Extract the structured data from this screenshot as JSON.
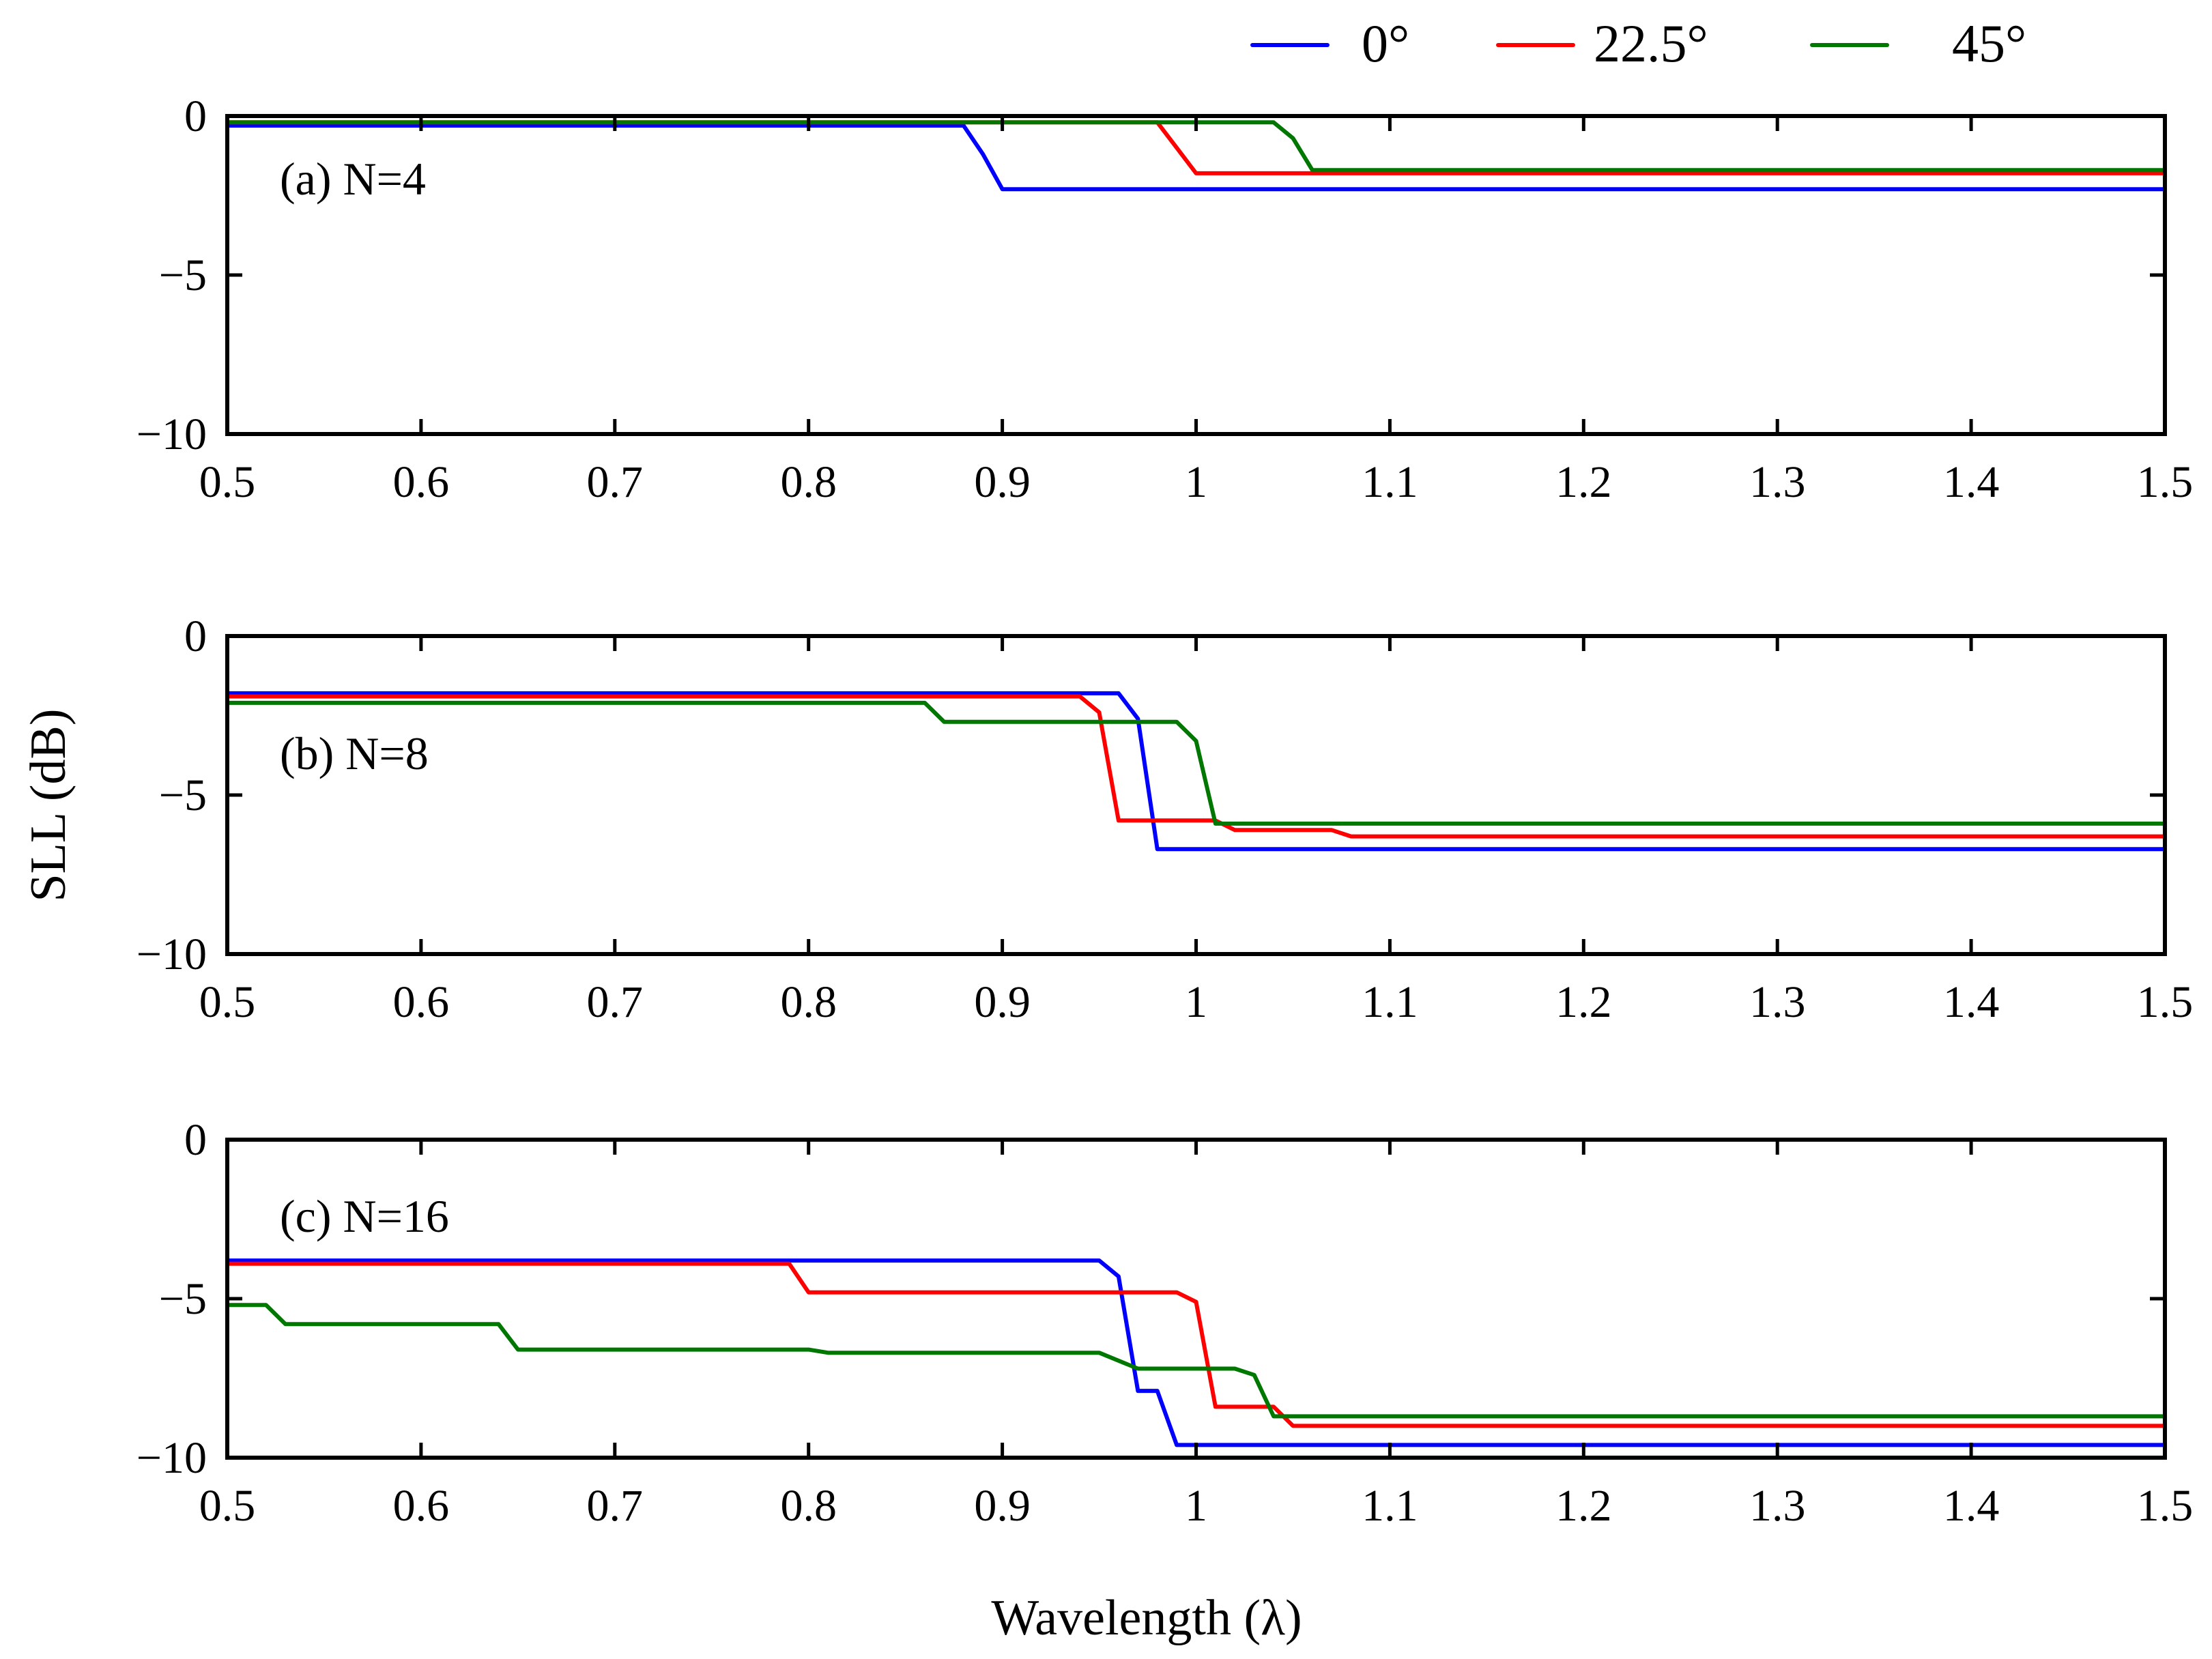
{
  "legend": [
    {
      "label": "0°",
      "color": "#0000ff"
    },
    {
      "label": "22.5°",
      "color": "#ff0000"
    },
    {
      "label": "45°",
      "color": "#007700"
    }
  ],
  "axes": {
    "ylabel": "SLL (dB)",
    "xlabel": "Wavelength (λ)"
  },
  "chart_data": [
    {
      "type": "line",
      "title": "(a) N=4",
      "xlim": [
        0.5,
        1.5
      ],
      "ylim": [
        -10,
        0
      ],
      "xticks": [
        0.5,
        0.6,
        0.7,
        0.8,
        0.9,
        1.0,
        1.1,
        1.2,
        1.3,
        1.4,
        1.5
      ],
      "xtick_labels": [
        "0.5",
        "0.6",
        "0.7",
        "0.8",
        "0.9",
        "1",
        "1.1",
        "1.2",
        "1.3",
        "1.4",
        "1.5"
      ],
      "yticks": [
        0,
        -5,
        -10
      ],
      "ytick_labels": [
        "0",
        "−5",
        "−10"
      ],
      "series": [
        {
          "name": "0°",
          "color": "#0000ff",
          "x": [
            0.5,
            0.88,
            0.89,
            0.9,
            1.5
          ],
          "y": [
            -0.3,
            -0.3,
            -1.2,
            -2.3,
            -2.3
          ]
        },
        {
          "name": "22.5°",
          "color": "#ff0000",
          "x": [
            0.5,
            0.98,
            0.99,
            1.0,
            1.5
          ],
          "y": [
            -0.2,
            -0.2,
            -1.0,
            -1.8,
            -1.8
          ]
        },
        {
          "name": "45°",
          "color": "#007700",
          "x": [
            0.5,
            1.04,
            1.05,
            1.06,
            1.5
          ],
          "y": [
            -0.2,
            -0.2,
            -0.7,
            -1.7,
            -1.7
          ]
        }
      ]
    },
    {
      "type": "line",
      "title": "(b) N=8",
      "xlim": [
        0.5,
        1.5
      ],
      "ylim": [
        -10,
        0
      ],
      "xticks": [
        0.5,
        0.6,
        0.7,
        0.8,
        0.9,
        1.0,
        1.1,
        1.2,
        1.3,
        1.4,
        1.5
      ],
      "xtick_labels": [
        "0.5",
        "0.6",
        "0.7",
        "0.8",
        "0.9",
        "1",
        "1.1",
        "1.2",
        "1.3",
        "1.4",
        "1.5"
      ],
      "yticks": [
        0,
        -5,
        -10
      ],
      "ytick_labels": [
        "0",
        "−5",
        "−10"
      ],
      "series": [
        {
          "name": "0°",
          "color": "#0000ff",
          "x": [
            0.5,
            0.96,
            0.97,
            0.98,
            1.5
          ],
          "y": [
            -1.8,
            -1.8,
            -2.6,
            -6.7,
            -6.7
          ]
        },
        {
          "name": "22.5°",
          "color": "#ff0000",
          "x": [
            0.5,
            0.94,
            0.95,
            0.96,
            1.01,
            1.02,
            1.07,
            1.08,
            1.5
          ],
          "y": [
            -1.9,
            -1.9,
            -2.4,
            -5.8,
            -5.8,
            -6.1,
            -6.1,
            -6.3,
            -6.3
          ]
        },
        {
          "name": "45°",
          "color": "#007700",
          "x": [
            0.5,
            0.86,
            0.87,
            0.99,
            1.0,
            1.01,
            1.5
          ],
          "y": [
            -2.1,
            -2.1,
            -2.7,
            -2.7,
            -3.3,
            -5.9,
            -5.9
          ]
        }
      ]
    },
    {
      "type": "line",
      "title": "(c) N=16",
      "xlim": [
        0.5,
        1.5
      ],
      "ylim": [
        -10,
        0
      ],
      "xticks": [
        0.5,
        0.6,
        0.7,
        0.8,
        0.9,
        1.0,
        1.1,
        1.2,
        1.3,
        1.4,
        1.5
      ],
      "xtick_labels": [
        "0.5",
        "0.6",
        "0.7",
        "0.8",
        "0.9",
        "1",
        "1.1",
        "1.2",
        "1.3",
        "1.4",
        "1.5"
      ],
      "yticks": [
        0,
        -5,
        -10
      ],
      "ytick_labels": [
        "0",
        "−5",
        "−10"
      ],
      "series": [
        {
          "name": "0°",
          "color": "#0000ff",
          "x": [
            0.5,
            0.95,
            0.96,
            0.97,
            0.98,
            0.99,
            1.5
          ],
          "y": [
            -3.8,
            -3.8,
            -4.3,
            -7.9,
            -7.9,
            -9.6,
            -9.6
          ]
        },
        {
          "name": "22.5°",
          "color": "#ff0000",
          "x": [
            0.5,
            0.79,
            0.8,
            0.99,
            1.0,
            1.01,
            1.04,
            1.05,
            1.5
          ],
          "y": [
            -3.9,
            -3.9,
            -4.8,
            -4.8,
            -5.1,
            -8.4,
            -8.4,
            -9.0,
            -9.0
          ]
        },
        {
          "name": "45°",
          "color": "#007700",
          "x": [
            0.5,
            0.52,
            0.53,
            0.64,
            0.65,
            0.8,
            0.81,
            0.95,
            0.97,
            1.02,
            1.03,
            1.04,
            1.5
          ],
          "y": [
            -5.2,
            -5.2,
            -5.8,
            -5.8,
            -6.6,
            -6.6,
            -6.7,
            -6.7,
            -7.2,
            -7.2,
            -7.4,
            -8.7,
            -8.7
          ]
        }
      ]
    }
  ]
}
